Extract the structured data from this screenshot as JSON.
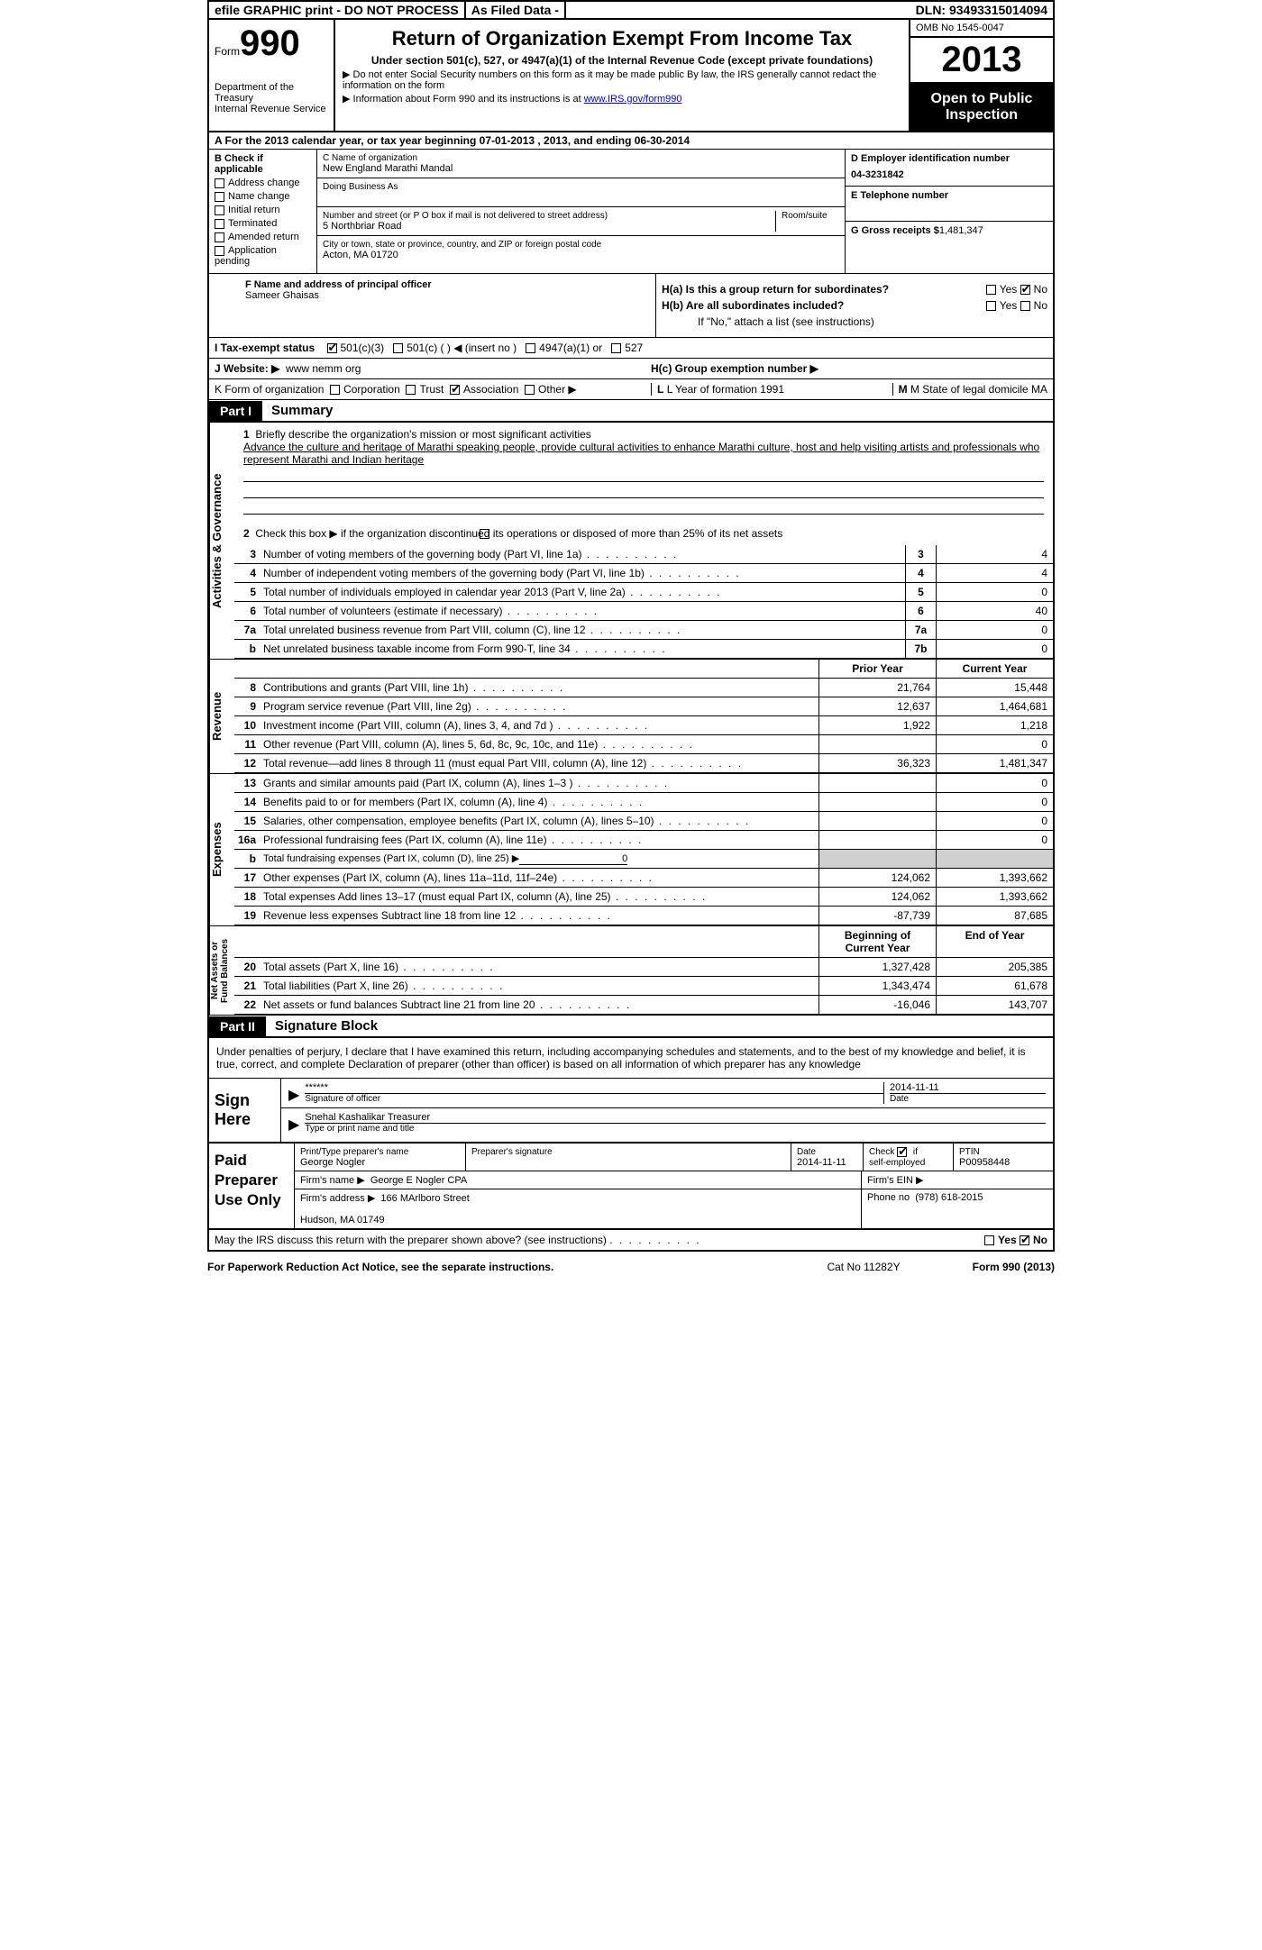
{
  "topbar": {
    "efile": "efile GRAPHIC print - DO NOT PROCESS",
    "asfiled": "As Filed Data -",
    "dln_label": "DLN:",
    "dln": "93493315014094"
  },
  "header": {
    "form_word": "Form",
    "form_num": "990",
    "dept": "Department of the Treasury\nInternal Revenue Service",
    "title": "Return of Organization Exempt From Income Tax",
    "subtitle": "Under section 501(c), 527, or 4947(a)(1) of the Internal Revenue Code (except private foundations)",
    "note1": "▶ Do not enter Social Security numbers on this form as it may be made public  By law, the IRS generally cannot redact the information on the form",
    "note2_pre": "▶ Information about Form 990 and its instructions is at ",
    "note2_link": "www.IRS.gov/form990",
    "omb": "OMB No  1545-0047",
    "year": "2013",
    "open": "Open to Public Inspection"
  },
  "row_a": "A  For the 2013 calendar year, or tax year beginning 07-01-2013     , 2013, and ending 06-30-2014",
  "col_b": {
    "title": "B  Check if applicable",
    "items": [
      "Address change",
      "Name change",
      "Initial return",
      "Terminated",
      "Amended return",
      "Application pending"
    ]
  },
  "col_c": {
    "c_lbl": "C Name of organization",
    "c_val": "New England Marathi Mandal",
    "dba_lbl": "Doing Business As",
    "addr_lbl": "Number and street (or P O  box if mail is not delivered to street address)",
    "room_lbl": "Room/suite",
    "addr_val": "5 Northbriar Road",
    "city_lbl": "City or town, state or province, country, and ZIP or foreign postal code",
    "city_val": "Acton, MA  01720"
  },
  "col_d": {
    "d_lbl": "D Employer identification number",
    "ein": "04-3231842",
    "e_lbl": "E Telephone number",
    "g_lbl": "G Gross receipts $",
    "g_val": "1,481,347"
  },
  "f": {
    "lbl": "F  Name and address of principal officer",
    "val": "Sameer Ghaisas"
  },
  "h": {
    "ha": "H(a)  Is this a group return for subordinates?",
    "hb": "H(b)  Are all subordinates included?",
    "hb_note": "If \"No,\" attach a list  (see instructions)",
    "hc": "H(c)  Group exemption number ▶",
    "yes": "Yes",
    "no": "No"
  },
  "line_i": {
    "label": "I   Tax-exempt status",
    "opts": [
      "501(c)(3)",
      "501(c) (  ) ◀ (insert no )",
      "4947(a)(1) or",
      "527"
    ]
  },
  "line_j": {
    "label": "J   Website: ▶",
    "val": "www nemm org"
  },
  "line_k": {
    "label": "K Form of organization",
    "opts": [
      "Corporation",
      "Trust",
      "Association",
      "Other ▶"
    ],
    "l": "L Year of formation   1991",
    "m": "M State of legal domicile   MA"
  },
  "part1": {
    "num": "Part I",
    "title": "Summary"
  },
  "mission": {
    "num": "1",
    "lbl": "Briefly describe the organization's mission or most significant activities",
    "text": "Advance the culture and heritage of Marathi speaking people, provide cultural activities to enhance Marathi culture, host and help visiting artists and professionals who represent Marathi and Indian heritage"
  },
  "line2": {
    "num": "2",
    "text": "Check this box ▶     if the organization discontinued its operations or disposed of more than 25% of its net assets"
  },
  "gov_lines": [
    {
      "n": "3",
      "t": "Number of voting members of the governing body (Part VI, line 1a)",
      "box": "3",
      "v": "4"
    },
    {
      "n": "4",
      "t": "Number of independent voting members of the governing body (Part VI, line 1b)",
      "box": "4",
      "v": "4"
    },
    {
      "n": "5",
      "t": "Total number of individuals employed in calendar year 2013 (Part V, line 2a)",
      "box": "5",
      "v": "0"
    },
    {
      "n": "6",
      "t": "Total number of volunteers (estimate if necessary)",
      "box": "6",
      "v": "40"
    },
    {
      "n": "7a",
      "t": "Total unrelated business revenue from Part VIII, column (C), line 12",
      "box": "7a",
      "v": "0"
    },
    {
      "n": "b",
      "t": "Net unrelated business taxable income from Form 990-T, line 34",
      "box": "7b",
      "v": "0"
    }
  ],
  "cols": {
    "prior": "Prior Year",
    "current": "Current Year",
    "begin": "Beginning of Current Year",
    "end": "End of Year"
  },
  "revenue": [
    {
      "n": "8",
      "t": "Contributions and grants (Part VIII, line 1h)",
      "p": "21,764",
      "c": "15,448"
    },
    {
      "n": "9",
      "t": "Program service revenue (Part VIII, line 2g)",
      "p": "12,637",
      "c": "1,464,681"
    },
    {
      "n": "10",
      "t": "Investment income (Part VIII, column (A), lines 3, 4, and 7d )",
      "p": "1,922",
      "c": "1,218"
    },
    {
      "n": "11",
      "t": "Other revenue (Part VIII, column (A), lines 5, 6d, 8c, 9c, 10c, and 11e)",
      "p": "",
      "c": "0"
    },
    {
      "n": "12",
      "t": "Total revenue—add lines 8 through 11 (must equal Part VIII, column (A), line 12)",
      "p": "36,323",
      "c": "1,481,347"
    }
  ],
  "expenses": [
    {
      "n": "13",
      "t": "Grants and similar amounts paid (Part IX, column (A), lines 1–3 )",
      "p": "",
      "c": "0"
    },
    {
      "n": "14",
      "t": "Benefits paid to or for members (Part IX, column (A), line 4)",
      "p": "",
      "c": "0"
    },
    {
      "n": "15",
      "t": "Salaries, other compensation, employee benefits (Part IX, column (A), lines 5–10)",
      "p": "",
      "c": "0"
    },
    {
      "n": "16a",
      "t": "Professional fundraising fees (Part IX, column (A), line 11e)",
      "p": "",
      "c": "0"
    },
    {
      "n": "b",
      "t": "Total fundraising expenses (Part IX, column (D), line 25) ▶",
      "p": "gray",
      "c": "gray",
      "fund": "0"
    },
    {
      "n": "17",
      "t": "Other expenses (Part IX, column (A), lines 11a–11d, 11f–24e)",
      "p": "124,062",
      "c": "1,393,662"
    },
    {
      "n": "18",
      "t": "Total expenses  Add lines 13–17 (must equal Part IX, column (A), line 25)",
      "p": "124,062",
      "c": "1,393,662"
    },
    {
      "n": "19",
      "t": "Revenue less expenses  Subtract line 18 from line 12",
      "p": "-87,739",
      "c": "87,685"
    }
  ],
  "netassets": [
    {
      "n": "20",
      "t": "Total assets (Part X, line 16)",
      "p": "1,327,428",
      "c": "205,385"
    },
    {
      "n": "21",
      "t": "Total liabilities (Part X, line 26)",
      "p": "1,343,474",
      "c": "61,678"
    },
    {
      "n": "22",
      "t": "Net assets or fund balances  Subtract line 21 from line 20",
      "p": "-16,046",
      "c": "143,707"
    }
  ],
  "vtabs": {
    "gov": "Activities & Governance",
    "rev": "Revenue",
    "exp": "Expenses",
    "net": "Net Assets or\nFund Balances"
  },
  "part2": {
    "num": "Part II",
    "title": "Signature Block"
  },
  "sig": {
    "declaration": "Under penalties of perjury, I declare that I have examined this return, including accompanying schedules and statements, and to the best of my knowledge and belief, it is true, correct, and complete  Declaration of preparer (other than officer) is based on all information of which preparer has any knowledge",
    "sign_here": "Sign Here",
    "stars": "******",
    "date1": "2014-11-11",
    "sig_of_officer": "Signature of officer",
    "date_lbl": "Date",
    "officer_name": "Snehal Kashalikar Treasurer",
    "type_lbl": "Type or print name and title"
  },
  "prep": {
    "label": "Paid Preparer Use Only",
    "name_lbl": "Print/Type preparer's name",
    "name": "George Nogler",
    "sig_lbl": "Preparer's signature",
    "date_lbl": "Date",
    "date": "2014-11-11",
    "check_lbl": "Check        if self-employed",
    "ptin_lbl": "PTIN",
    "ptin": "P00958448",
    "firm_name_lbl": "Firm's name    ▶",
    "firm_name": "George E Nogler CPA",
    "firm_ein_lbl": "Firm's EIN ▶",
    "firm_addr_lbl": "Firm's address ▶",
    "firm_addr": "166 MArlboro Street\n\nHudson, MA  01749",
    "phone_lbl": "Phone no",
    "phone": "(978) 618-2015"
  },
  "discuss": "May the IRS discuss this return with the preparer shown above? (see instructions)",
  "footer": {
    "left": "For Paperwork Reduction Act Notice, see the separate instructions.",
    "mid": "Cat  No  11282Y",
    "right": "Form 990 (2013)"
  }
}
